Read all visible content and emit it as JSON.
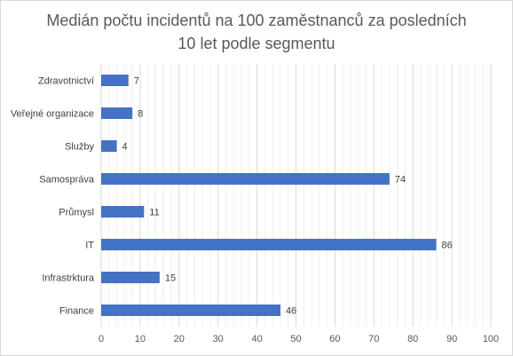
{
  "chart_data": {
    "type": "bar",
    "orientation": "horizontal",
    "title_lines": [
      "Medián počtu incidentů na 100 zaměstnanců za posledních",
      "10 let podle segmentu"
    ],
    "categories": [
      "Zdravotnictví",
      "Veřejné organizace",
      "Služby",
      "Samospráva",
      "Průmysl",
      "IT",
      "Infrastrktura",
      "Finance"
    ],
    "values": [
      7,
      8,
      4,
      74,
      11,
      86,
      15,
      46
    ],
    "xlim": [
      0,
      100
    ],
    "xticks": [
      0,
      10,
      20,
      30,
      40,
      50,
      60,
      70,
      80,
      90,
      100
    ],
    "grid": "vertical minor and major",
    "legend": "none",
    "bar_color": "#4472c4",
    "data_labels": true
  }
}
